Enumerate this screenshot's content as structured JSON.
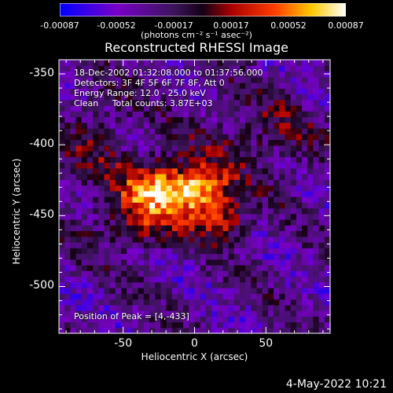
{
  "colorbar": {
    "ticks": [
      "-0.00087",
      "-0.00052",
      "-0.00017",
      "0.00017",
      "0.00052",
      "0.00087"
    ],
    "units": "(photons cm⁻² s⁻¹ asec⁻²)"
  },
  "chart_data": {
    "type": "heatmap",
    "title": "Reconstructed RHESSI Image",
    "xlabel": "Heliocentric X (arcsec)",
    "ylabel": "Heliocentric Y (arcsec)",
    "xlim": [
      -95,
      95
    ],
    "ylim": [
      -533,
      -340
    ],
    "x_ticks": [
      -50,
      0,
      50
    ],
    "x_tick_labels": [
      "-50",
      "0",
      "50"
    ],
    "y_ticks": [
      -350,
      -400,
      -450,
      -500
    ],
    "y_tick_labels": [
      "-350",
      "-400",
      "-450",
      "-500"
    ],
    "color_range": [
      -0.00087,
      0.00087
    ],
    "peak": [
      4,
      -433
    ],
    "sources": [
      {
        "x": -25,
        "y": -430,
        "amp": 0.00085,
        "sx": 18,
        "sy": 14
      },
      {
        "x": 5,
        "y": -433,
        "amp": 0.00087,
        "sx": 15,
        "sy": 12
      },
      {
        "x": 20,
        "y": -455,
        "amp": 0.00055,
        "sx": 12,
        "sy": 10
      },
      {
        "x": -40,
        "y": -455,
        "amp": 0.0004,
        "sx": 22,
        "sy": 14
      },
      {
        "x": 45,
        "y": -395,
        "amp": 0.0003,
        "sx": 30,
        "sy": 20
      },
      {
        "x": -70,
        "y": -400,
        "amp": 0.00025,
        "sx": 18,
        "sy": 25
      }
    ],
    "legend": "top-left",
    "grid": false
  },
  "annotations": {
    "time": "18-Dec-2002 01:32:08.000 to 01:37:56.000",
    "detectors": "Detectors: 3F 4F 5F 6F 7F 8F, Att 0",
    "energy": "Energy Range: 12.0 - 25.0 keV",
    "clean": "Clean     Total counts: 3.87E+03",
    "peak": "Position of Peak = [4,-433]"
  },
  "datestamp": "4-May-2022 10:21"
}
